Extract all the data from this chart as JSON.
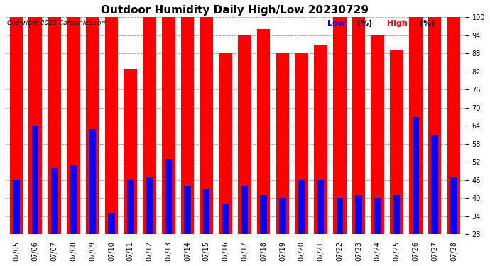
{
  "title": "Outdoor Humidity Daily High/Low 20230729",
  "copyright": "Copyright 2023 Cartronics.com",
  "legend_low_label": "Low",
  "legend_high_label": "High",
  "legend_pct": "(%)",
  "dates": [
    "07/05",
    "07/06",
    "07/07",
    "07/08",
    "07/09",
    "07/10",
    "07/11",
    "07/12",
    "07/13",
    "07/14",
    "07/15",
    "07/16",
    "07/17",
    "07/18",
    "07/19",
    "07/20",
    "07/21",
    "07/22",
    "07/23",
    "07/24",
    "07/25",
    "07/26",
    "07/27",
    "07/28"
  ],
  "high": [
    100,
    100,
    100,
    100,
    100,
    100,
    83,
    100,
    100,
    100,
    100,
    88,
    94,
    96,
    88,
    88,
    91,
    100,
    100,
    94,
    89,
    100,
    100,
    100
  ],
  "low": [
    46,
    64,
    50,
    51,
    63,
    35,
    46,
    47,
    53,
    44,
    43,
    38,
    44,
    41,
    40,
    46,
    46,
    40,
    41,
    40,
    41,
    67,
    61,
    47
  ],
  "ylim_min": 28,
  "ylim_max": 100,
  "yticks": [
    28,
    34,
    40,
    46,
    52,
    58,
    64,
    70,
    76,
    82,
    88,
    94,
    100
  ],
  "high_color": "#ff0000",
  "low_color": "#0000ff",
  "bg_color": "#ffffff",
  "grid_color": "#999999",
  "title_fontsize": 11,
  "tick_fontsize": 7,
  "copyright_fontsize": 6.5,
  "legend_fontsize": 8
}
